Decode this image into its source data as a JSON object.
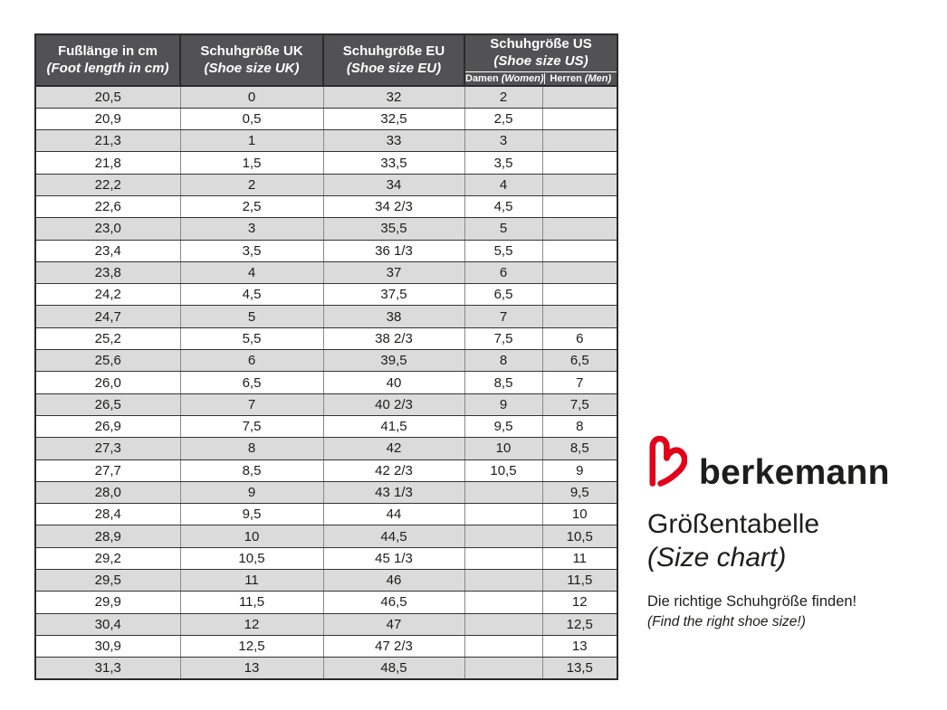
{
  "table": {
    "columns": [
      {
        "title": "Fußlänge in cm",
        "subtitle": "(Foot length in cm)"
      },
      {
        "title": "Schuhgröße UK",
        "subtitle": "(Shoe size UK)"
      },
      {
        "title": "Schuhgröße EU",
        "subtitle": "(Shoe size EU)"
      },
      {
        "title": "Schuhgröße US",
        "subtitle": "(Shoe size US)",
        "subcolumns": [
          {
            "label": "Damen",
            "label_en": "(Women)"
          },
          {
            "label": "Herren",
            "label_en": "(Men)"
          }
        ]
      }
    ],
    "rows": [
      [
        "20,5",
        "0",
        "32",
        "2",
        ""
      ],
      [
        "20,9",
        "0,5",
        "32,5",
        "2,5",
        ""
      ],
      [
        "21,3",
        "1",
        "33",
        "3",
        ""
      ],
      [
        "21,8",
        "1,5",
        "33,5",
        "3,5",
        ""
      ],
      [
        "22,2",
        "2",
        "34",
        "4",
        ""
      ],
      [
        "22,6",
        "2,5",
        "34 2/3",
        "4,5",
        ""
      ],
      [
        "23,0",
        "3",
        "35,5",
        "5",
        ""
      ],
      [
        "23,4",
        "3,5",
        "36 1/3",
        "5,5",
        ""
      ],
      [
        "23,8",
        "4",
        "37",
        "6",
        ""
      ],
      [
        "24,2",
        "4,5",
        "37,5",
        "6,5",
        ""
      ],
      [
        "24,7",
        "5",
        "38",
        "7",
        ""
      ],
      [
        "25,2",
        "5,5",
        "38 2/3",
        "7,5",
        "6"
      ],
      [
        "25,6",
        "6",
        "39,5",
        "8",
        "6,5"
      ],
      [
        "26,0",
        "6,5",
        "40",
        "8,5",
        "7"
      ],
      [
        "26,5",
        "7",
        "40 2/3",
        "9",
        "7,5"
      ],
      [
        "26,9",
        "7,5",
        "41,5",
        "9,5",
        "8"
      ],
      [
        "27,3",
        "8",
        "42",
        "10",
        "8,5"
      ],
      [
        "27,7",
        "8,5",
        "42 2/3",
        "10,5",
        "9"
      ],
      [
        "28,0",
        "9",
        "43 1/3",
        "",
        "9,5"
      ],
      [
        "28,4",
        "9,5",
        "44",
        "",
        "10"
      ],
      [
        "28,9",
        "10",
        "44,5",
        "",
        "10,5"
      ],
      [
        "29,2",
        "10,5",
        "45 1/3",
        "",
        "11"
      ],
      [
        "29,5",
        "11",
        "46",
        "",
        "11,5"
      ],
      [
        "29,9",
        "11,5",
        "46,5",
        "",
        "12"
      ],
      [
        "30,4",
        "12",
        "47",
        "",
        "12,5"
      ],
      [
        "30,9",
        "12,5",
        "47 2/3",
        "",
        "13"
      ],
      [
        "31,3",
        "13",
        "48,5",
        "",
        "13,5"
      ]
    ]
  },
  "branding": {
    "wordmark": "berkemann",
    "logo_icon": "berkemann-b-heart-logo",
    "title_de": "Größentabelle",
    "title_en": "(Size chart)",
    "tagline_de": "Die richtige Schuhgröße finden!",
    "tagline_en": "(Find the right shoe size!)"
  },
  "colors": {
    "header_bg": "#525255",
    "header_text": "#ffffff",
    "row_alt_bg": "#dbdbdb",
    "row_bg": "#ffffff",
    "border_dark": "#2b2b2b",
    "logo_red": "#e2001a",
    "text": "#1d1d1b"
  }
}
